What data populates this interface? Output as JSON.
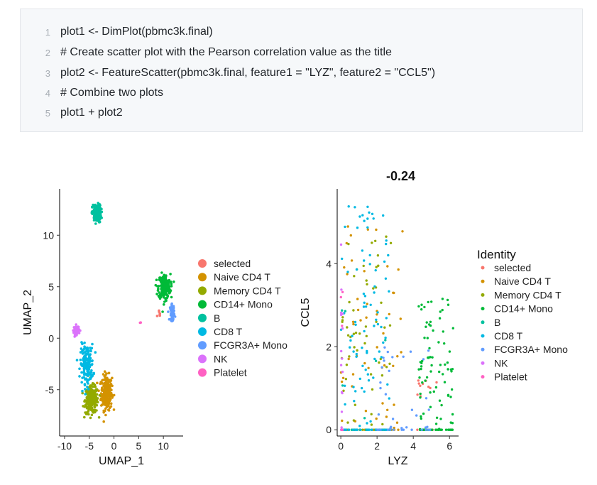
{
  "code": {
    "lines": [
      {
        "num": "1",
        "text": "plot1 <- DimPlot(pbmc3k.final)"
      },
      {
        "num": "2",
        "text": "# Create scatter plot with the Pearson correlation value as the title"
      },
      {
        "num": "3",
        "text": "plot2 <- FeatureScatter(pbmc3k.final, feature1 = \"LYZ\", feature2 = \"CCL5\")"
      },
      {
        "num": "4",
        "text": "# Combine two plots"
      },
      {
        "num": "5",
        "text": "plot1 + plot2"
      }
    ]
  },
  "chart_data": [
    {
      "type": "scatter",
      "title": "",
      "xlabel": "UMAP_1",
      "ylabel": "UMAP_2",
      "xlim": [
        -11,
        14
      ],
      "ylim": [
        -9.5,
        14.5
      ],
      "xticks": [
        -10,
        -5,
        0,
        5,
        10
      ],
      "yticks": [
        -5,
        0,
        5,
        10
      ],
      "legend_position": "right",
      "legend_title": "",
      "series": [
        {
          "name": "selected",
          "color": "#F8766D",
          "clusters": [
            {
              "cx": 9.2,
              "cy": 2.3,
              "sx": 0.4,
              "sy": 0.5,
              "n": 6
            }
          ]
        },
        {
          "name": "Naive CD4 T",
          "color": "#D39200",
          "clusters": [
            {
              "cx": -1.5,
              "cy": -5.3,
              "sx": 1.0,
              "sy": 1.5,
              "n": 260
            }
          ]
        },
        {
          "name": "Memory CD4 T",
          "color": "#93AA00",
          "clusters": [
            {
              "cx": -4.5,
              "cy": -6.0,
              "sx": 1.2,
              "sy": 1.2,
              "n": 240
            }
          ]
        },
        {
          "name": "CD14+ Mono",
          "color": "#00BA38",
          "clusters": [
            {
              "cx": 10.2,
              "cy": 5.0,
              "sx": 1.1,
              "sy": 1.1,
              "n": 220
            }
          ]
        },
        {
          "name": "B",
          "color": "#00C19F",
          "clusters": [
            {
              "cx": -3.5,
              "cy": 12.1,
              "sx": 0.8,
              "sy": 0.8,
              "n": 170
            }
          ]
        },
        {
          "name": "CD8 T",
          "color": "#00B9E3",
          "clusters": [
            {
              "cx": -5.5,
              "cy": -2.5,
              "sx": 1.2,
              "sy": 1.7,
              "n": 170
            }
          ]
        },
        {
          "name": "FCGR3A+ Mono",
          "color": "#619CFF",
          "clusters": [
            {
              "cx": 11.8,
              "cy": 2.5,
              "sx": 0.4,
              "sy": 0.7,
              "n": 60
            }
          ]
        },
        {
          "name": "NK",
          "color": "#DB72FB",
          "clusters": [
            {
              "cx": -7.6,
              "cy": 0.8,
              "sx": 0.5,
              "sy": 0.4,
              "n": 60
            }
          ]
        },
        {
          "name": "Platelet",
          "color": "#FF61C3",
          "clusters": [
            {
              "cx": 5.3,
              "cy": 1.5,
              "sx": 0.1,
              "sy": 0.1,
              "n": 2
            }
          ]
        }
      ]
    },
    {
      "type": "scatter",
      "title": "-0.24",
      "xlabel": "LYZ",
      "ylabel": "CCL5",
      "xlim": [
        -0.2,
        6.5
      ],
      "ylim": [
        -0.15,
        5.8
      ],
      "xticks": [
        0,
        2,
        4,
        6
      ],
      "yticks": [
        0,
        2,
        4
      ],
      "legend_position": "right",
      "legend_title": "Identity",
      "series": [
        {
          "name": "selected",
          "color": "#F8766D",
          "n": 12,
          "x_range": [
            4.2,
            5.3
          ],
          "y_range": [
            0.7,
            1.2
          ]
        },
        {
          "name": "Naive CD4 T",
          "color": "#D39200",
          "n": 60,
          "x_range": [
            0.0,
            3.5
          ],
          "y_range": [
            0.0,
            5.0
          ]
        },
        {
          "name": "Memory CD4 T",
          "color": "#93AA00",
          "n": 80,
          "x_range": [
            0.0,
            2.8
          ],
          "y_range": [
            0.0,
            5.0
          ]
        },
        {
          "name": "CD14+ Mono",
          "color": "#00BA38",
          "n": 110,
          "x_range": [
            4.3,
            6.2
          ],
          "y_range": [
            0.0,
            3.2
          ]
        },
        {
          "name": "B",
          "color": "#00C19F",
          "n": 15,
          "x_range": [
            0.0,
            2.5
          ],
          "y_range": [
            0.0,
            3.0
          ]
        },
        {
          "name": "CD8 T",
          "color": "#00B9E3",
          "n": 110,
          "x_range": [
            0.0,
            2.7
          ],
          "y_range": [
            0.0,
            5.5
          ]
        },
        {
          "name": "FCGR3A+ Mono",
          "color": "#619CFF",
          "n": 40,
          "x_range": [
            2.0,
            5.0
          ],
          "y_range": [
            0.0,
            2.0
          ]
        },
        {
          "name": "NK",
          "color": "#DB72FB",
          "n": 30,
          "x_range": [
            0.0,
            0.1
          ],
          "y_range": [
            0.0,
            5.5
          ]
        },
        {
          "name": "Platelet",
          "color": "#FF61C3",
          "n": 6,
          "x_range": [
            0.0,
            0.1
          ],
          "y_range": [
            1.0,
            5.0
          ]
        }
      ]
    }
  ]
}
